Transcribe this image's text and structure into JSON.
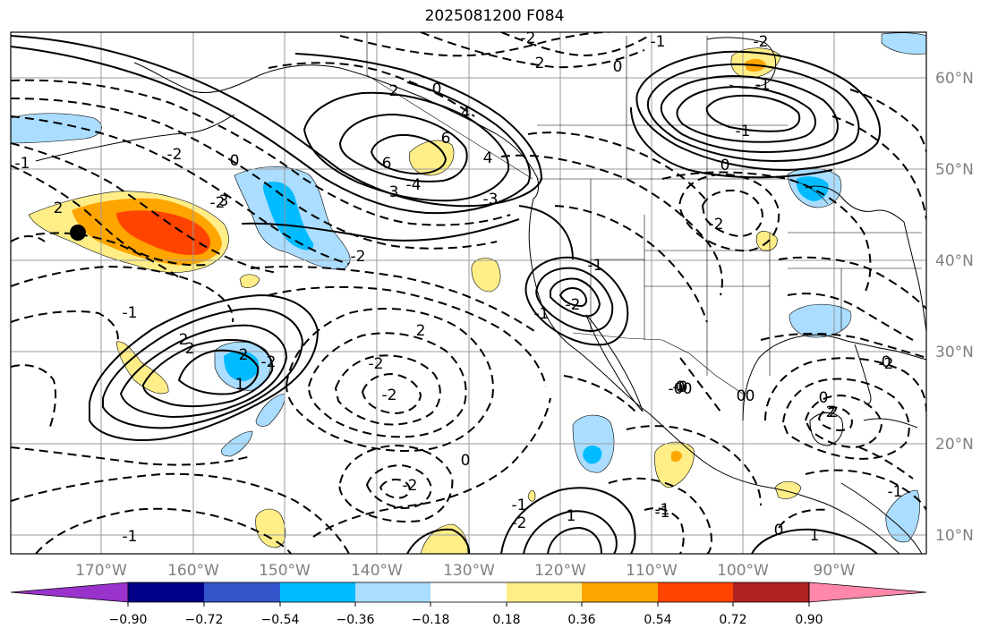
{
  "title": "2025081200 F084",
  "map": {
    "lat_labels": [
      "60°N",
      "50°N",
      "40°N",
      "30°N",
      "20°N",
      "10°N"
    ],
    "lon_labels": [
      "170°W",
      "160°W",
      "150°W",
      "140°W",
      "130°W",
      "120°W",
      "110°W",
      "100°W",
      "90°W"
    ]
  },
  "colorbar": {
    "colors": [
      "#9933cc",
      "#000088",
      "#3355cc",
      "#00bbff",
      "#aaddff",
      "#ffffff",
      "#ffee88",
      "#ffa500",
      "#ff4400",
      "#b22222",
      "#ff88aa"
    ],
    "tick_labels": [
      "−0.90",
      "−0.72",
      "−0.54",
      "−0.36",
      "−0.18",
      "0.18",
      "0.36",
      "0.54",
      "0.72",
      "0.90"
    ]
  },
  "contour_labels": [
    "2",
    "-2",
    "-1",
    "-2",
    "0",
    "-2",
    "-1",
    "2",
    "0",
    "-1",
    "6",
    "3",
    "-4",
    "4",
    "0",
    "-2",
    "4",
    "6",
    "0",
    "-1",
    "-2",
    "-3",
    "3",
    "-2",
    "2",
    "-2",
    "-2",
    "-2",
    "-1",
    "2",
    "2",
    "-2",
    "-1",
    "-2",
    "0",
    "-1",
    "1",
    "-2",
    "-1",
    "0",
    "0",
    "-2",
    "-2",
    "-0",
    "-2",
    "-1",
    "0",
    "2",
    "0",
    "1",
    "-1",
    "-0",
    "0",
    "1",
    "0",
    "-1",
    "-1",
    "-0",
    "-2"
  ],
  "colors": {
    "contour": "#000000",
    "grid": "#999999",
    "coast": "#000000"
  }
}
